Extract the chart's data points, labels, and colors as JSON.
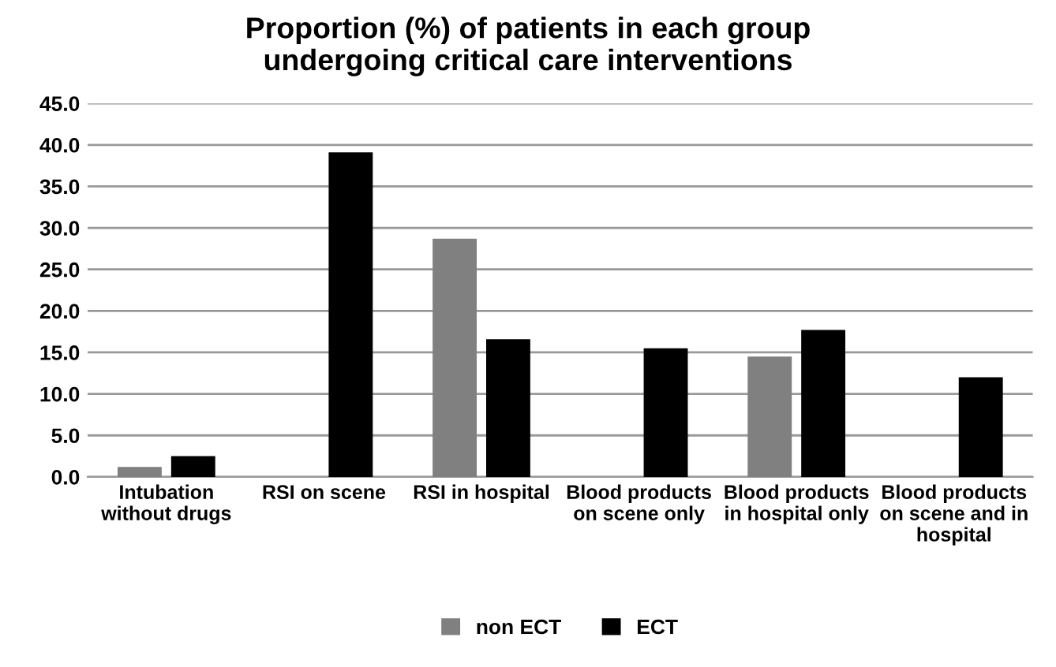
{
  "chart_data": {
    "type": "bar",
    "title": "Proportion (%) of patients in each group undergoing critical care interventions",
    "categories": [
      "Intubation without drugs",
      "RSI on scene",
      "RSI in hospital",
      "Blood products on scene only",
      "Blood products in hospital only",
      "Blood products on scene and in hospital"
    ],
    "series": [
      {
        "name": "non ECT",
        "color": "#808080",
        "values": [
          1.2,
          0,
          28.7,
          0,
          14.5,
          0
        ]
      },
      {
        "name": "ECT",
        "color": "#000000",
        "values": [
          2.5,
          39.1,
          16.6,
          15.5,
          17.7,
          12.0
        ]
      }
    ],
    "ylim": [
      0,
      45
    ],
    "yticks": [
      {
        "value": 0,
        "label": "0.0"
      },
      {
        "value": 5,
        "label": "5.0"
      },
      {
        "value": 10,
        "label": "10.0"
      },
      {
        "value": 15,
        "label": "15.0"
      },
      {
        "value": 20,
        "label": "20.0"
      },
      {
        "value": 25,
        "label": "25.0"
      },
      {
        "value": 30,
        "label": "30.0"
      },
      {
        "value": 35,
        "label": "35.0"
      },
      {
        "value": 40,
        "label": "40.0"
      },
      {
        "value": 45,
        "label": "45.0"
      }
    ],
    "grid": "y",
    "legend": "bottom"
  }
}
